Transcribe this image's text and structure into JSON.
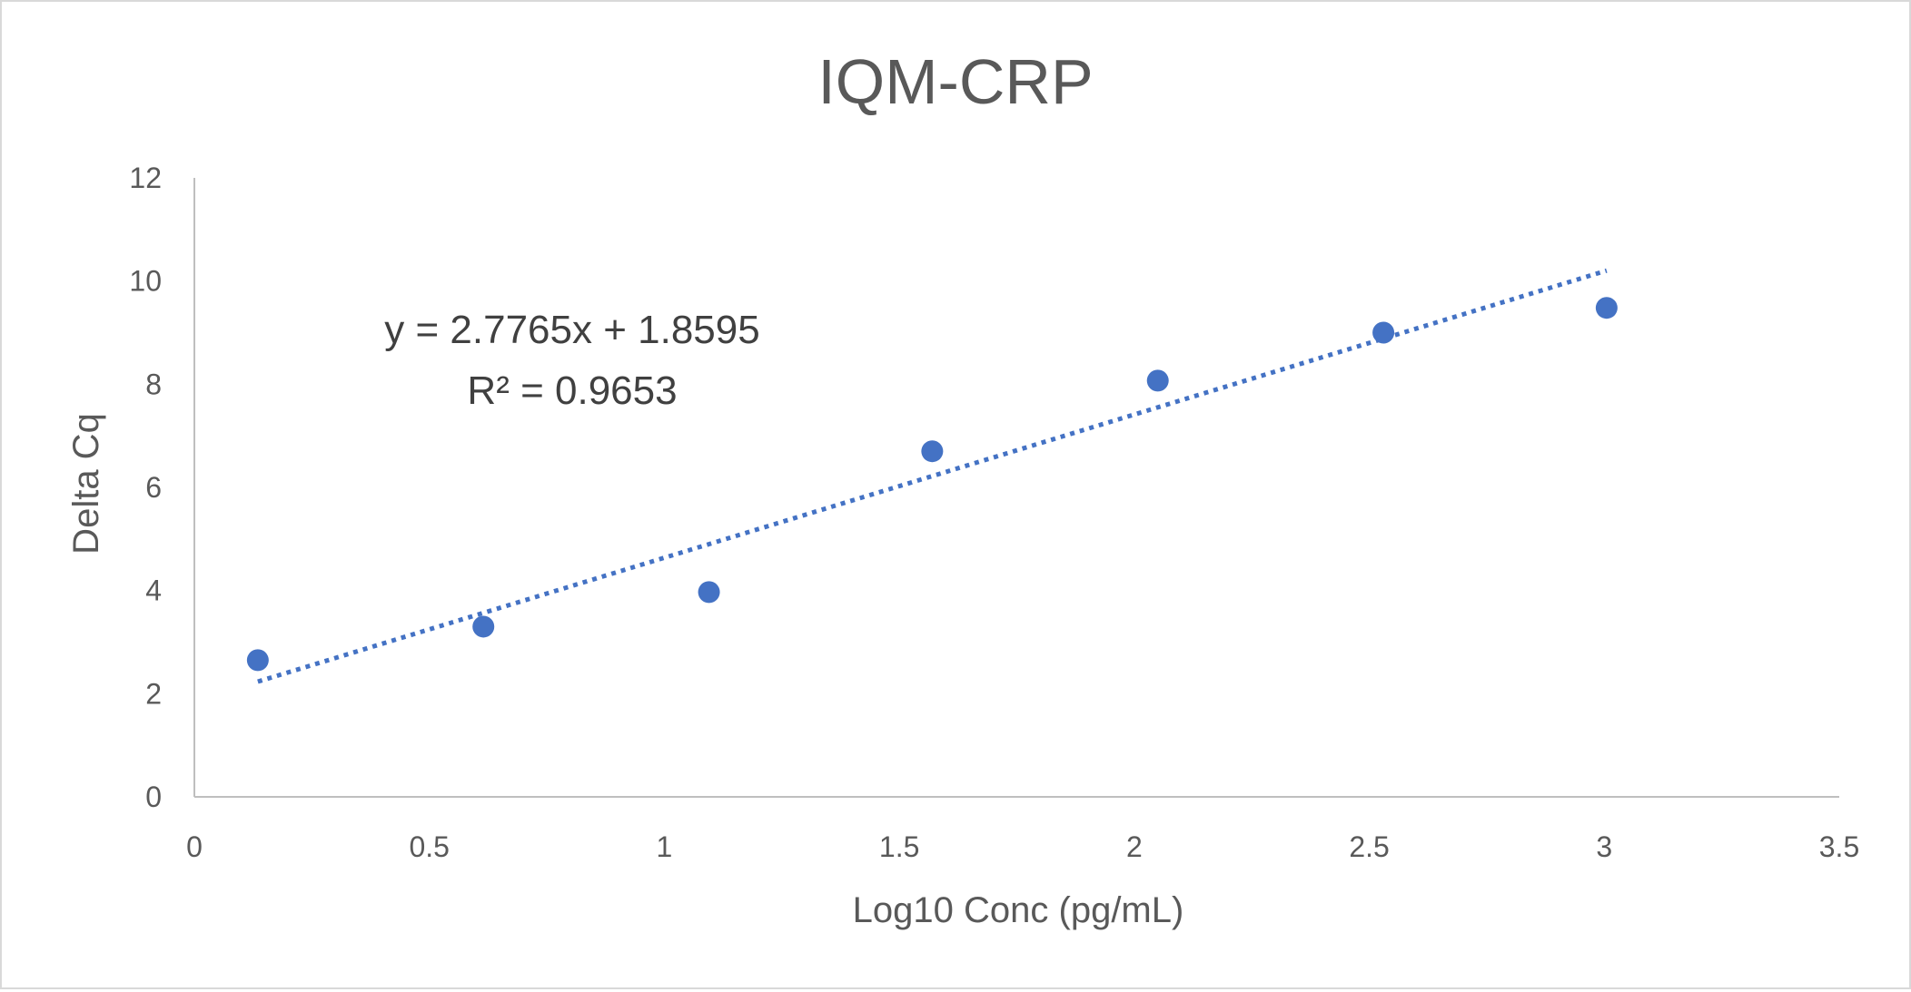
{
  "chart_data": {
    "type": "scatter",
    "title": "IQM-CRP",
    "xlabel": "Log10 Conc (pg/mL)",
    "ylabel": "Delta Cq",
    "xlim": [
      0,
      3.5
    ],
    "ylim": [
      0,
      12
    ],
    "x_ticks": [
      0,
      0.5,
      1,
      1.5,
      2,
      2.5,
      3,
      3.5
    ],
    "x_tick_labels": [
      "0",
      "0.5",
      "1",
      "1.5",
      "2",
      "2.5",
      "3",
      "3.5"
    ],
    "y_ticks": [
      0,
      2,
      4,
      6,
      8,
      10,
      12
    ],
    "y_tick_labels": [
      "0",
      "2",
      "4",
      "6",
      "8",
      "10",
      "12"
    ],
    "grid": false,
    "legend": "none",
    "series": [
      {
        "color": "#4472c4",
        "points": [
          {
            "x": 0.135,
            "y": 2.65
          },
          {
            "x": 0.615,
            "y": 3.3
          },
          {
            "x": 1.095,
            "y": 3.97
          },
          {
            "x": 1.57,
            "y": 6.7
          },
          {
            "x": 2.05,
            "y": 8.07
          },
          {
            "x": 2.53,
            "y": 9.0
          },
          {
            "x": 3.005,
            "y": 9.48
          }
        ]
      }
    ],
    "trendline": {
      "type": "linear",
      "style": "dotted",
      "color": "#4472c4",
      "slope": 2.7765,
      "intercept": 1.8595,
      "x_range": [
        0.135,
        3.005
      ],
      "equation_label": "y = 2.7765x + 1.8595",
      "r2_label": "R² = 0.9653"
    },
    "axis_color": "#bfbfbf"
  }
}
